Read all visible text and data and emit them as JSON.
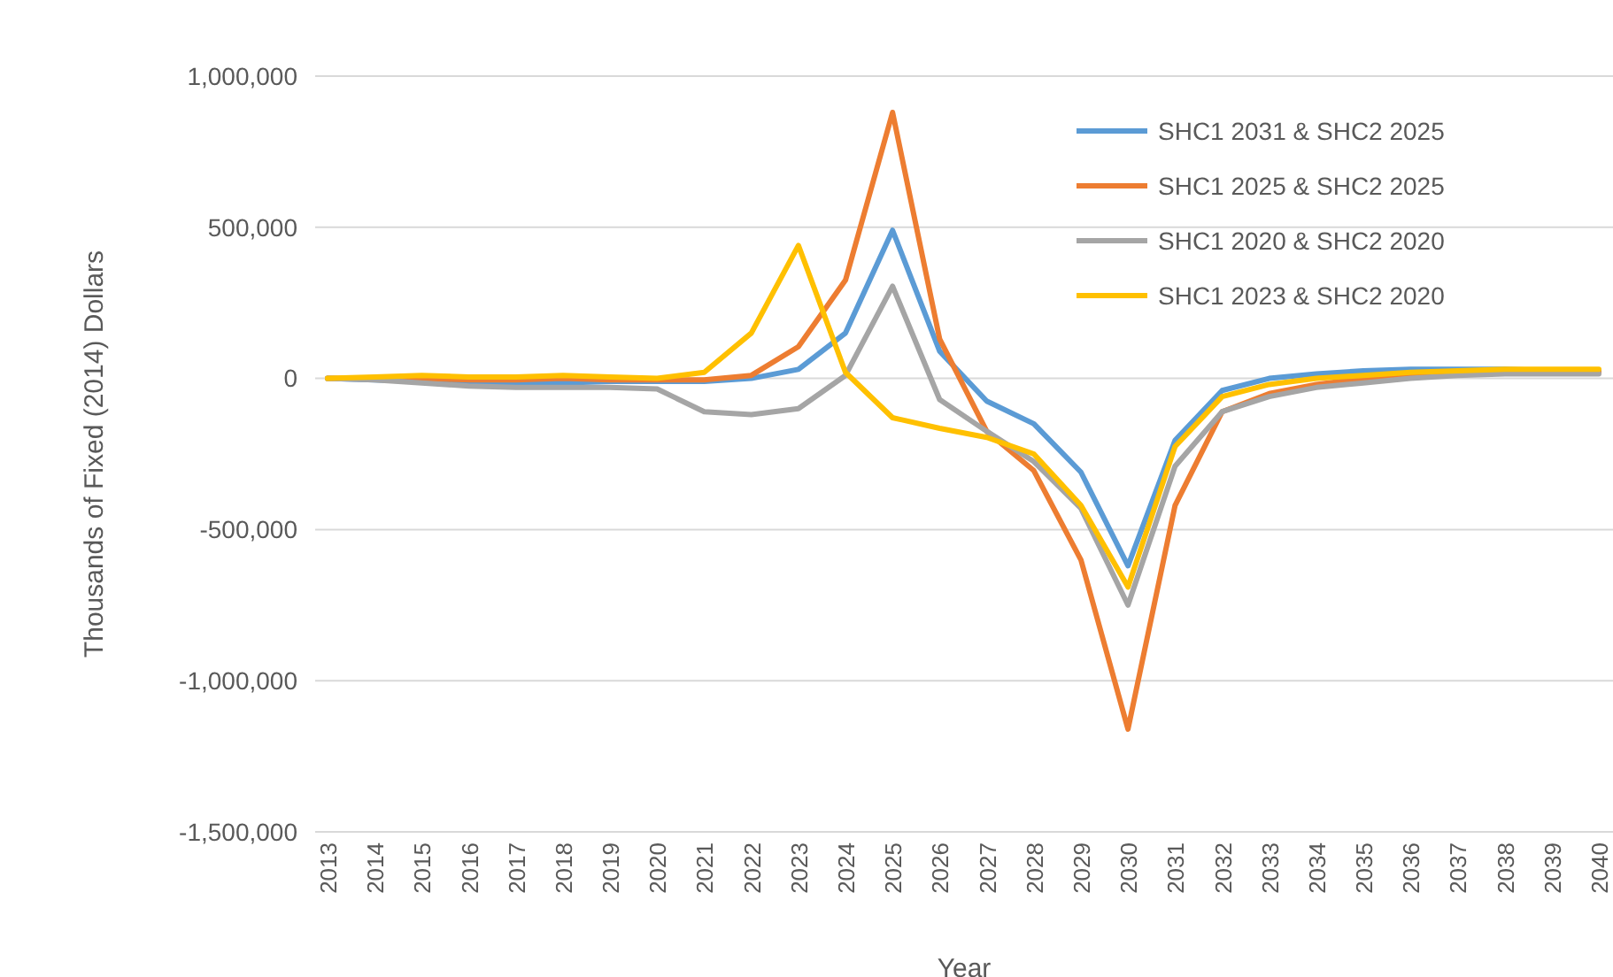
{
  "chart_data": {
    "type": "line",
    "xlabel": "Year",
    "ylabel": "Thousands of Fixed (2014) Dollars",
    "categories": [
      "2013",
      "2014",
      "2015",
      "2016",
      "2017",
      "2018",
      "2019",
      "2020",
      "2021",
      "2022",
      "2023",
      "2024",
      "2025",
      "2026",
      "2027",
      "2028",
      "2029",
      "2030",
      "2031",
      "2032",
      "2033",
      "2034",
      "2035",
      "2036",
      "2037",
      "2038",
      "2039",
      "2040"
    ],
    "ylim": [
      -1500000,
      1000000
    ],
    "yticks": [
      {
        "value": -1500000,
        "label": "-1,500,000"
      },
      {
        "value": -1000000,
        "label": "-1,000,000"
      },
      {
        "value": -500000,
        "label": "-500,000"
      },
      0,
      {
        "value": 500000,
        "label": "500,000"
      },
      {
        "value": 1000000,
        "label": "1,000,000"
      }
    ],
    "grid": "y",
    "legend": "top right",
    "marker": "none",
    "line_style": "solid",
    "series": [
      {
        "name": "SHC1 2031 & SHC2 2025",
        "color": "#5b9bd5",
        "values": [
          0,
          -5000,
          -10000,
          -15000,
          -15000,
          -15000,
          -10000,
          -10000,
          -10000,
          0,
          30000,
          150000,
          490000,
          90000,
          -75000,
          -150000,
          -310000,
          -620000,
          -205000,
          -40000,
          0,
          15000,
          25000,
          30000,
          30000,
          30000,
          25000,
          25000
        ]
      },
      {
        "name": "SHC1 2025 & SHC2 2025",
        "color": "#ed7d31",
        "values": [
          0,
          0,
          0,
          -5000,
          -5000,
          0,
          -5000,
          -5000,
          -5000,
          10000,
          105000,
          325000,
          880000,
          130000,
          -175000,
          -305000,
          -600000,
          -1160000,
          -420000,
          -110000,
          -50000,
          -20000,
          0,
          10000,
          20000,
          20000,
          20000,
          20000
        ]
      },
      {
        "name": "SHC1 2020 & SHC2 2020",
        "color": "#a5a5a5",
        "values": [
          0,
          -5000,
          -15000,
          -25000,
          -30000,
          -30000,
          -30000,
          -35000,
          -110000,
          -120000,
          -100000,
          10000,
          305000,
          -70000,
          -175000,
          -275000,
          -430000,
          -750000,
          -290000,
          -110000,
          -60000,
          -30000,
          -15000,
          0,
          10000,
          15000,
          15000,
          15000
        ]
      },
      {
        "name": "SHC1 2023 & SHC2 2020",
        "color": "#ffc000",
        "values": [
          0,
          5000,
          10000,
          5000,
          5000,
          10000,
          5000,
          0,
          20000,
          150000,
          440000,
          20000,
          -130000,
          -165000,
          -195000,
          -250000,
          -420000,
          -690000,
          -225000,
          -60000,
          -20000,
          0,
          10000,
          20000,
          25000,
          30000,
          30000,
          30000
        ]
      }
    ]
  }
}
